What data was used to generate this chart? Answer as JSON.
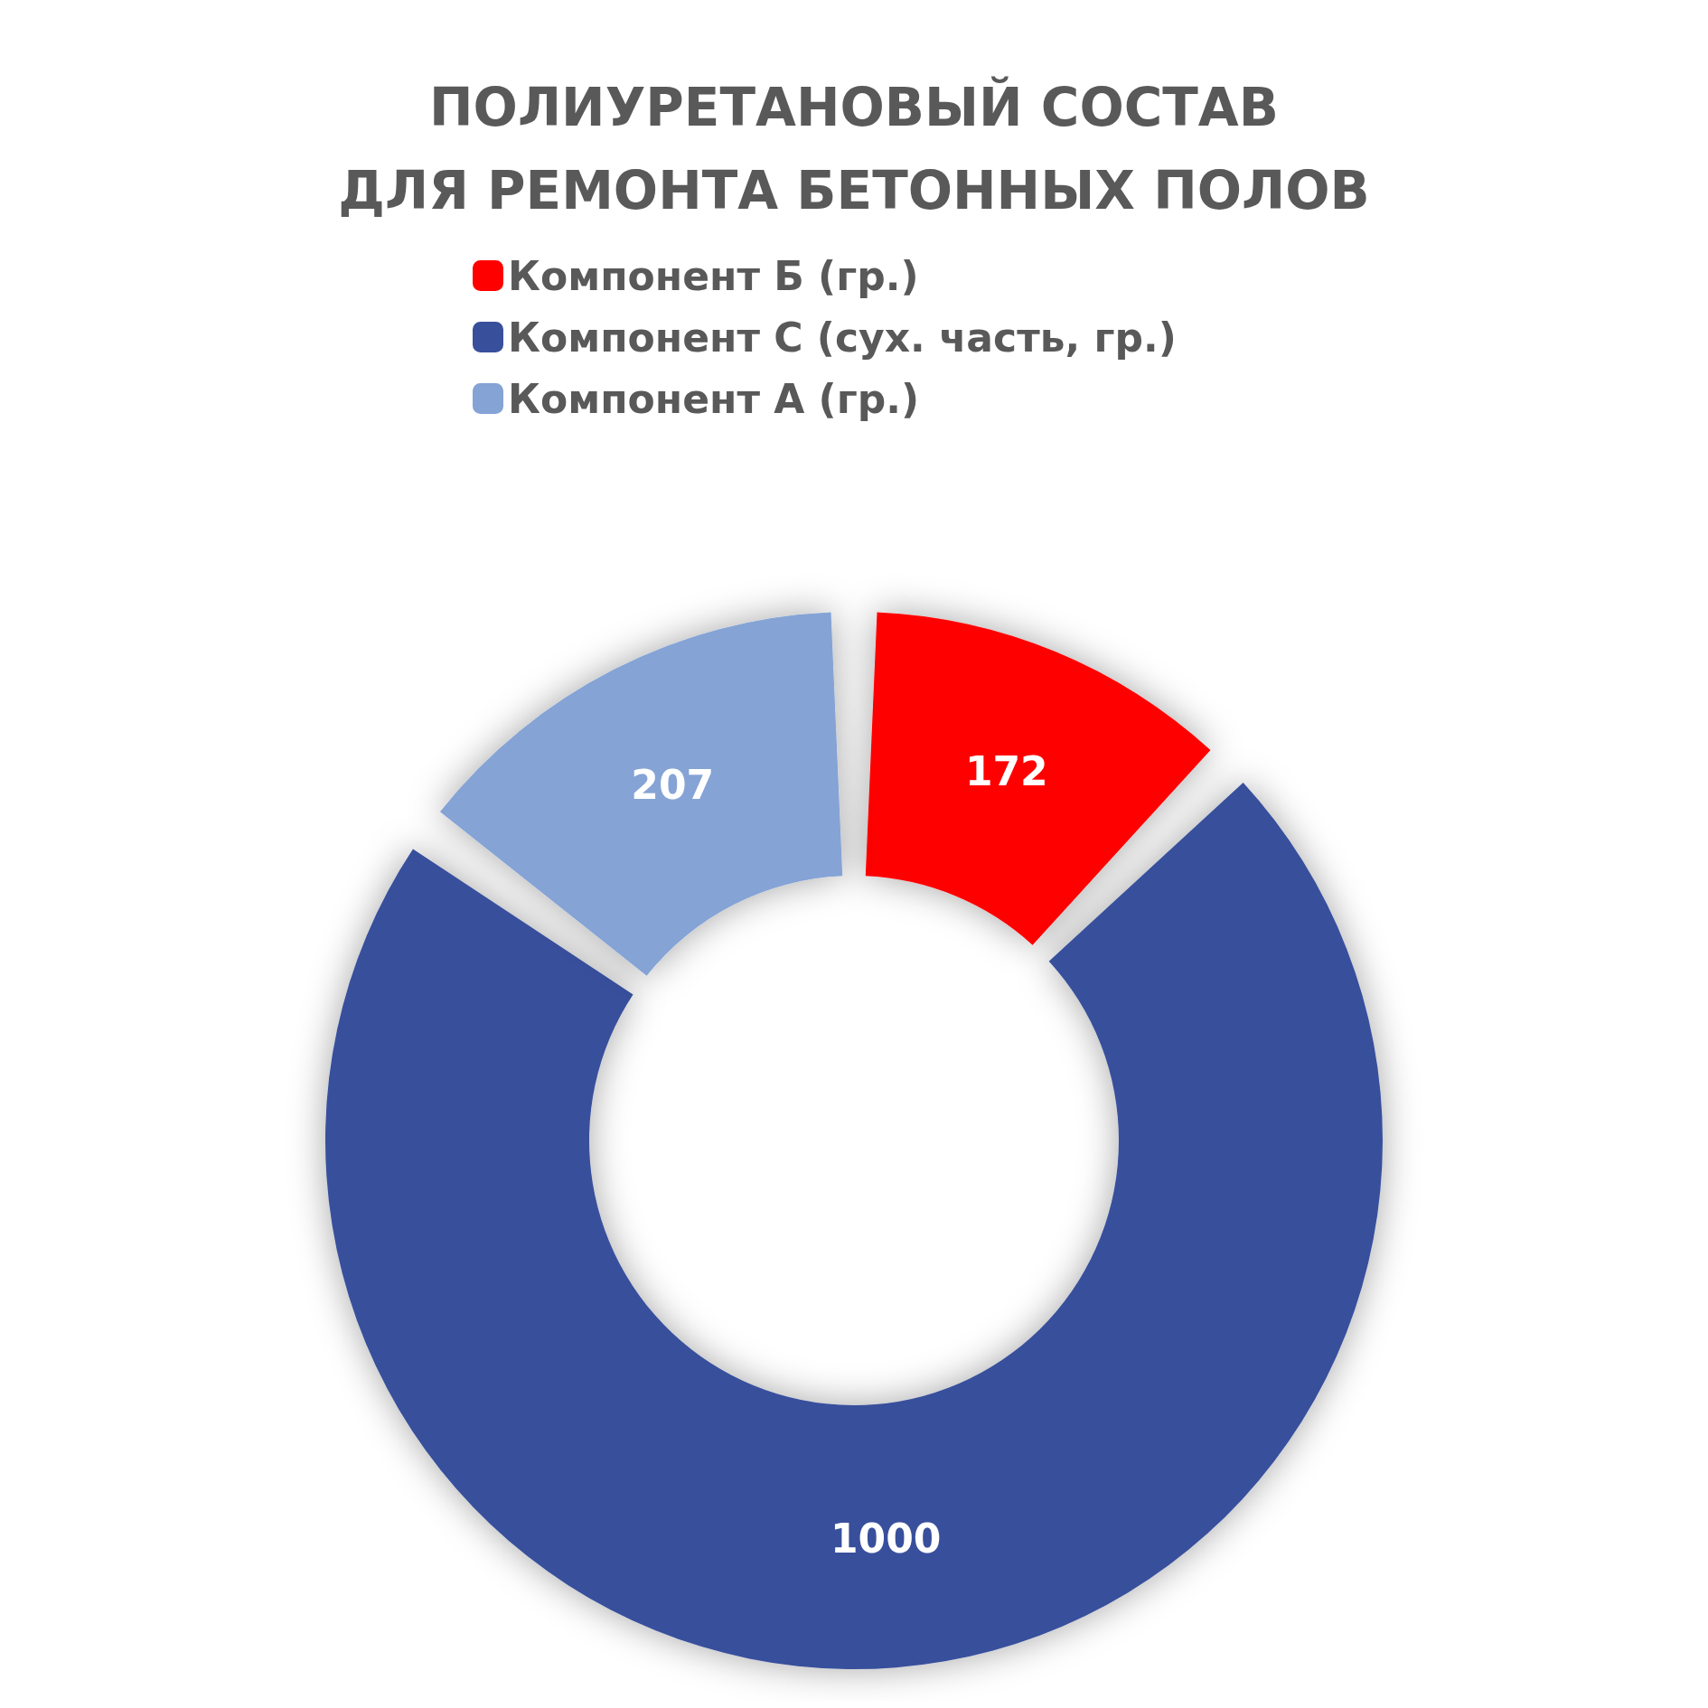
{
  "chart_data": {
    "type": "donut",
    "title": "ПОЛИУРЕТАНОВЫЙ СОСТАВ\nДЛЯ РЕМОНТА БЕТОННЫХ ПОЛОВ",
    "categories": [
      "Компонент Б (гр.)",
      "Компонент С (сух. часть, гр.)",
      "Компонент А (гр.)"
    ],
    "values": [
      172,
      1000,
      207
    ],
    "colors": [
      "#ff0000",
      "#38509c",
      "#85a3d5"
    ],
    "data_labels": true,
    "legend": "top"
  }
}
